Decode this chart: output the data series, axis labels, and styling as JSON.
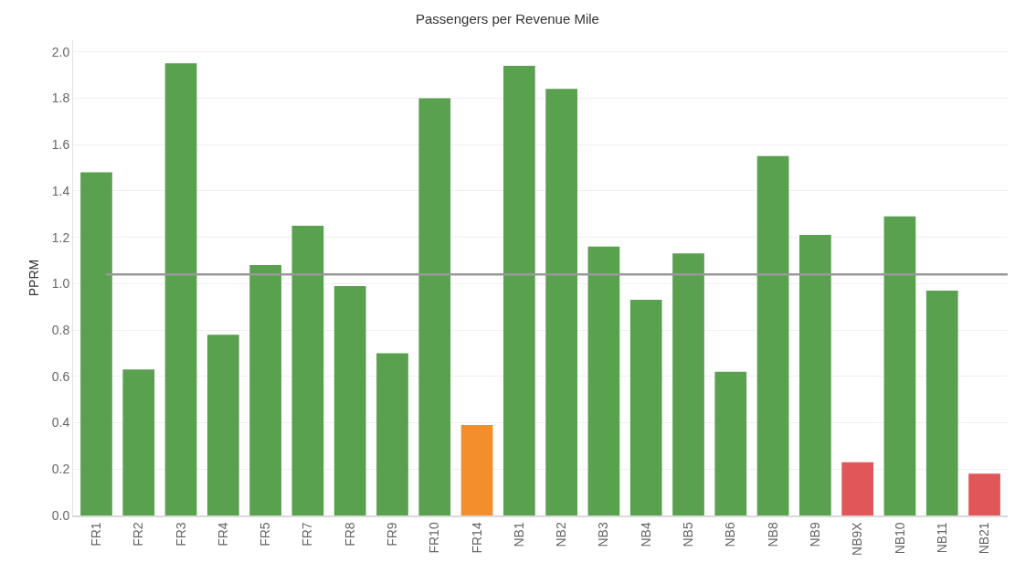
{
  "chart_data": {
    "type": "bar",
    "title": "Passengers per Revenue Mile",
    "ylabel": "PPRM",
    "categories": [
      "FR1",
      "FR2",
      "FR3",
      "FR4",
      "FR5",
      "FR7",
      "FR8",
      "FR9",
      "FR10",
      "FR14",
      "NB1",
      "NB2",
      "NB3",
      "NB4",
      "NB5",
      "NB6",
      "NB8",
      "NB9",
      "NB9X",
      "NB10",
      "NB11",
      "NB21"
    ],
    "values": [
      1.48,
      0.63,
      1.95,
      0.78,
      1.08,
      1.25,
      0.99,
      0.7,
      1.8,
      0.39,
      1.94,
      1.84,
      1.16,
      0.93,
      1.13,
      0.62,
      1.55,
      1.21,
      0.23,
      1.29,
      0.97,
      0.18
    ],
    "colors": [
      "#59a14f",
      "#59a14f",
      "#59a14f",
      "#59a14f",
      "#59a14f",
      "#59a14f",
      "#59a14f",
      "#59a14f",
      "#59a14f",
      "#f28e2b",
      "#59a14f",
      "#59a14f",
      "#59a14f",
      "#59a14f",
      "#59a14f",
      "#59a14f",
      "#59a14f",
      "#59a14f",
      "#e15759",
      "#59a14f",
      "#59a14f",
      "#e15759"
    ],
    "ylim": [
      0,
      2.05
    ],
    "yticks": [
      {
        "value": 0,
        "label": "0.0"
      },
      {
        "value": 0.2,
        "label": "0.2"
      },
      {
        "value": 0.4,
        "label": "0.4"
      },
      {
        "value": 0.6,
        "label": "0.6"
      },
      {
        "value": 0.8,
        "label": "0.8"
      },
      {
        "value": 1,
        "label": "1.0"
      },
      {
        "value": 1.2,
        "label": "1.2"
      },
      {
        "value": 1.4,
        "label": "1.4"
      },
      {
        "value": 1.6,
        "label": "1.6"
      },
      {
        "value": 1.8,
        "label": "1.8"
      },
      {
        "value": 2,
        "label": "2.0"
      }
    ],
    "ref_lines": [
      {
        "axis": "y",
        "value": 1.04,
        "color": "#999999"
      }
    ],
    "grid": "y"
  }
}
